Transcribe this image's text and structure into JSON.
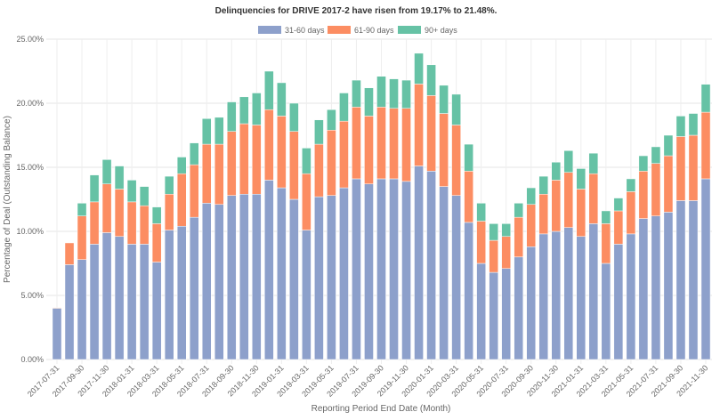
{
  "chart_data": {
    "type": "bar",
    "stacked": true,
    "title": "Delinquencies for DRIVE 2017-2 have risen from 19.17% to 21.48%.",
    "xlabel": "Reporting Period End Date (Month)",
    "ylabel": "Percentage of Deal (Outstanding Balance)",
    "ylim": [
      0,
      25
    ],
    "yticks": [
      "0.00%",
      "5.00%",
      "10.00%",
      "15.00%",
      "20.00%",
      "25.00%"
    ],
    "grid": true,
    "legend_position": "top",
    "categories": [
      "2017-07-31",
      "2017-08-31",
      "2017-09-30",
      "2017-10-31",
      "2017-11-30",
      "2017-12-31",
      "2018-01-31",
      "2018-02-28",
      "2018-03-31",
      "2018-04-30",
      "2018-05-31",
      "2018-06-30",
      "2018-07-31",
      "2018-08-31",
      "2018-09-30",
      "2018-10-31",
      "2018-11-30",
      "2018-12-31",
      "2019-01-31",
      "2019-02-28",
      "2019-03-31",
      "2019-04-30",
      "2019-05-31",
      "2019-06-30",
      "2019-07-31",
      "2019-08-31",
      "2019-09-30",
      "2019-10-31",
      "2019-11-30",
      "2019-12-31",
      "2020-01-31",
      "2020-02-29",
      "2020-03-31",
      "2020-04-30",
      "2020-05-31",
      "2020-06-30",
      "2020-07-31",
      "2020-08-31",
      "2020-09-30",
      "2020-10-31",
      "2020-11-30",
      "2020-12-31",
      "2021-01-31",
      "2021-02-28",
      "2021-03-31",
      "2021-04-30",
      "2021-05-31",
      "2021-06-30",
      "2021-07-31",
      "2021-08-31",
      "2021-09-30",
      "2021-10-31",
      "2021-11-30"
    ],
    "series": [
      {
        "name": "31-60 days",
        "color": "#8da0cb",
        "values": [
          4.0,
          7.4,
          7.8,
          9.0,
          9.9,
          9.6,
          9.0,
          9.0,
          7.6,
          10.1,
          10.4,
          11.1,
          12.2,
          12.1,
          12.8,
          12.9,
          12.9,
          14.0,
          13.4,
          12.5,
          10.1,
          12.7,
          12.8,
          13.4,
          14.1,
          13.7,
          14.1,
          14.1,
          13.9,
          15.1,
          14.7,
          13.5,
          12.8,
          10.7,
          7.5,
          6.8,
          7.1,
          8.0,
          8.8,
          9.8,
          10.0,
          10.3,
          9.6,
          10.6,
          7.5,
          9.0,
          9.8,
          11.0,
          11.2,
          11.5,
          12.4,
          12.4,
          14.1
        ]
      },
      {
        "name": "61-90 days",
        "color": "#fc8d62",
        "values": [
          0.05,
          1.7,
          3.4,
          3.3,
          3.8,
          3.7,
          3.3,
          3.0,
          3.0,
          2.8,
          4.1,
          4.1,
          4.6,
          4.7,
          5.0,
          5.5,
          5.4,
          5.5,
          5.6,
          5.3,
          4.4,
          4.1,
          5.1,
          5.2,
          5.6,
          5.3,
          5.6,
          5.5,
          5.7,
          6.4,
          5.9,
          5.7,
          5.5,
          4.0,
          3.3,
          2.5,
          2.5,
          3.1,
          3.3,
          3.1,
          4.0,
          4.3,
          3.7,
          3.9,
          3.1,
          2.6,
          3.3,
          3.7,
          4.1,
          4.4,
          5.0,
          5.1,
          5.2
        ]
      },
      {
        "name": "90+ days",
        "color": "#66c2a5",
        "values": [
          0,
          0,
          1.0,
          2.1,
          1.9,
          1.8,
          1.7,
          1.5,
          1.3,
          1.4,
          1.3,
          1.7,
          2.0,
          2.1,
          2.3,
          2.1,
          2.5,
          3.0,
          2.6,
          2.2,
          2.0,
          1.9,
          1.6,
          2.2,
          2.1,
          2.2,
          2.4,
          2.3,
          2.2,
          2.4,
          2.4,
          2.2,
          2.4,
          2.1,
          1.4,
          1.3,
          1.0,
          1.1,
          1.3,
          1.4,
          1.4,
          1.7,
          1.6,
          1.6,
          1.0,
          1.0,
          1.0,
          1.2,
          1.3,
          1.6,
          1.6,
          1.7,
          2.18
        ]
      }
    ]
  }
}
